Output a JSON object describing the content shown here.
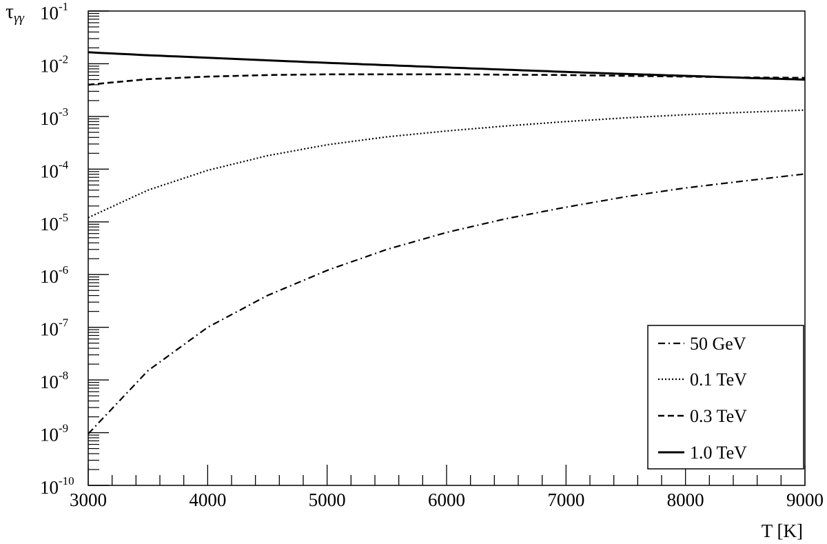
{
  "chart_data": {
    "type": "line",
    "xlabel": "T [K]",
    "ylabel_main": "τ",
    "ylabel_sub": "γγ",
    "xlim": [
      3000,
      9000
    ],
    "ylim": [
      1e-10,
      0.1
    ],
    "yscale": "log",
    "x_ticks": [
      "3000",
      "4000",
      "5000",
      "6000",
      "7000",
      "8000",
      "9000"
    ],
    "y_ticks": [
      {
        "base": "10",
        "exp": "-10"
      },
      {
        "base": "10",
        "exp": "-9"
      },
      {
        "base": "10",
        "exp": "-8"
      },
      {
        "base": "10",
        "exp": "-7"
      },
      {
        "base": "10",
        "exp": "-6"
      },
      {
        "base": "10",
        "exp": "-5"
      },
      {
        "base": "10",
        "exp": "-4"
      },
      {
        "base": "10",
        "exp": "-3"
      },
      {
        "base": "10",
        "exp": "-2"
      },
      {
        "base": "10",
        "exp": "-1"
      }
    ],
    "grid": false,
    "legend_position": "bottom-right",
    "series": [
      {
        "name": "50 GeV",
        "style": "dash-dot",
        "x": [
          3000,
          3500,
          4000,
          4500,
          5000,
          5500,
          6000,
          6500,
          7000,
          7500,
          8000,
          8500,
          9000
        ],
        "y": [
          9.5e-10,
          1.5e-08,
          1e-07,
          4e-07,
          1.2e-06,
          3e-06,
          6.3e-06,
          1.15e-05,
          1.9e-05,
          3e-05,
          4.4e-05,
          6e-05,
          8.1e-05
        ]
      },
      {
        "name": "0.1 TeV",
        "style": "dotted",
        "x": [
          3000,
          3500,
          4000,
          4500,
          5000,
          5500,
          6000,
          6500,
          7000,
          7500,
          8000,
          8500,
          9000
        ],
        "y": [
          1.2e-05,
          4e-05,
          9.5e-05,
          0.00018,
          0.00029,
          0.00041,
          0.00053,
          0.00066,
          0.0008,
          0.00094,
          0.00108,
          0.0012,
          0.00132
        ]
      },
      {
        "name": "0.3 TeV",
        "style": "dashed",
        "x": [
          3000,
          3500,
          4000,
          4500,
          5000,
          5500,
          6000,
          6500,
          7000,
          7500,
          8000,
          8500,
          9000
        ],
        "y": [
          0.004,
          0.0051,
          0.0057,
          0.0061,
          0.0063,
          0.0063,
          0.0063,
          0.0062,
          0.0061,
          0.0059,
          0.0057,
          0.0055,
          0.0054
        ]
      },
      {
        "name": "1.0 TeV",
        "style": "solid",
        "x": [
          3000,
          3500,
          4000,
          4500,
          5000,
          5500,
          6000,
          6500,
          7000,
          7500,
          8000,
          8500,
          9000
        ],
        "y": [
          0.0165,
          0.0145,
          0.013,
          0.0116,
          0.0104,
          0.0094,
          0.0085,
          0.0077,
          0.007,
          0.0064,
          0.0059,
          0.0054,
          0.005
        ]
      }
    ]
  }
}
